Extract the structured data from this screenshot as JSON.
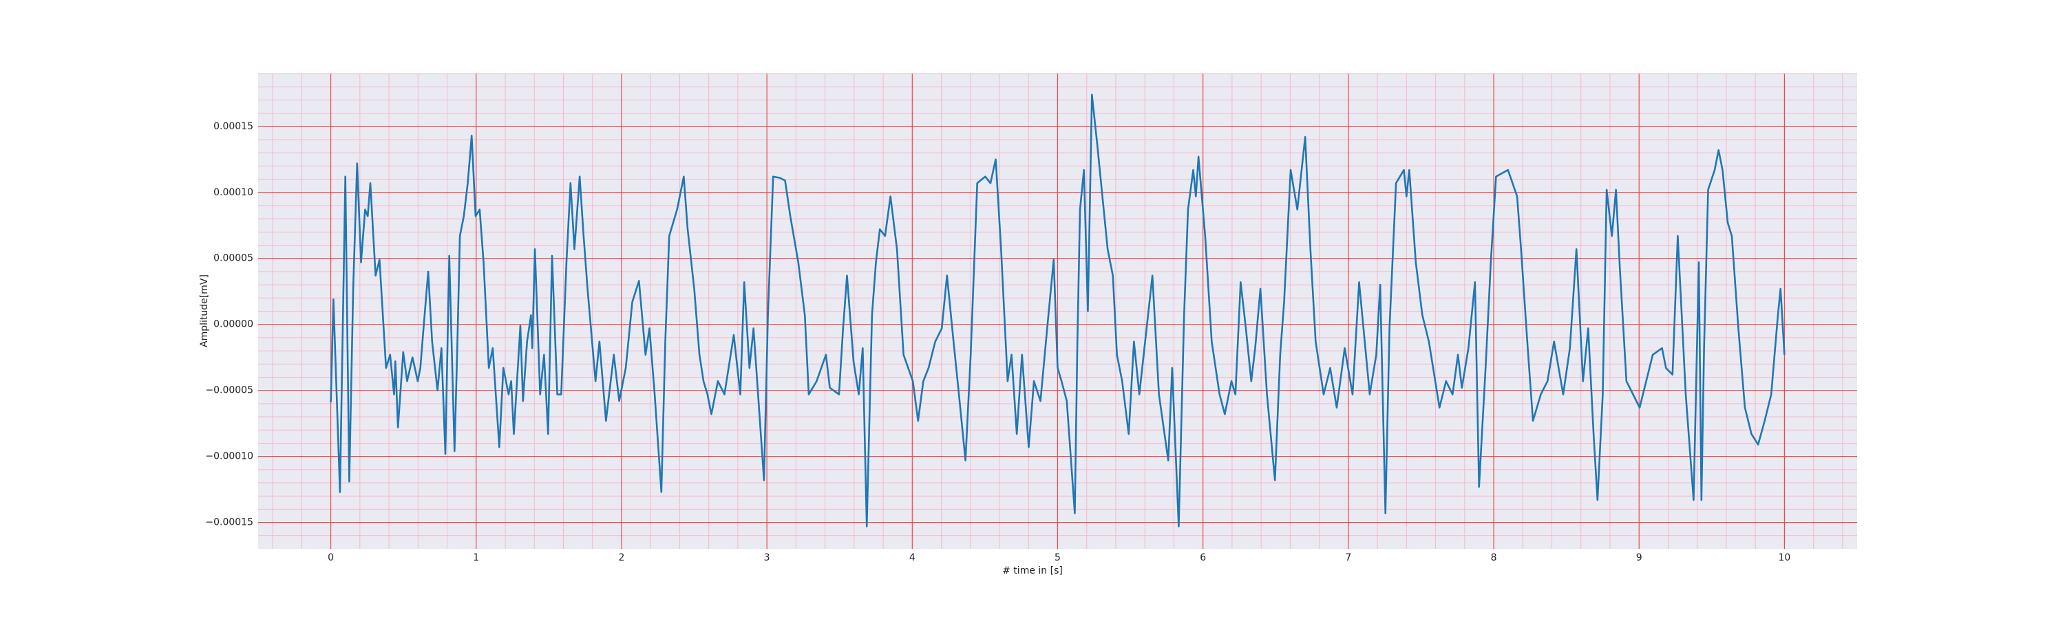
{
  "chart_data": {
    "type": "line",
    "xlabel": "# time in [s]",
    "ylabel": "Amplitude[mV]",
    "color": "#1f77b4",
    "grid": true,
    "minor_grid": true,
    "xlim": [
      -0.5,
      10.5
    ],
    "ylim": [
      -0.00017,
      0.00019
    ],
    "xticks": [
      0,
      1,
      2,
      3,
      4,
      5,
      6,
      7,
      8,
      9,
      10
    ],
    "yticks": [
      {
        "value": -0.00015,
        "label": "−0.00015"
      },
      {
        "value": -0.0001,
        "label": "−0.00010"
      },
      {
        "value": -5e-05,
        "label": "−0.00005"
      },
      {
        "value": 0,
        "label": "0.00000"
      },
      {
        "value": 5e-05,
        "label": "0.00005"
      },
      {
        "value": 0.0001,
        "label": "0.00010"
      },
      {
        "value": 0.00015,
        "label": "0.00015"
      }
    ],
    "xminorticks": [
      -0.4,
      -0.2,
      0.2,
      0.4,
      0.6,
      0.8,
      1.2,
      1.4,
      1.6,
      1.8,
      2.2,
      2.4,
      2.6,
      2.8,
      3.2,
      3.4,
      3.6,
      3.8,
      4.2,
      4.4,
      4.6,
      4.8,
      5.2,
      5.4,
      5.6,
      5.8,
      6.2,
      6.4,
      6.6,
      6.8,
      7.2,
      7.4,
      7.6,
      7.8,
      8.2,
      8.4,
      8.6,
      8.8,
      9.2,
      9.4,
      9.6,
      9.8,
      10.2,
      10.4
    ],
    "yminorticks": [
      -0.00016,
      -0.00014,
      -0.00013,
      -0.00012,
      -0.00011,
      -9e-05,
      -8e-05,
      -7e-05,
      -6e-05,
      -4e-05,
      -3e-05,
      -2e-05,
      -1e-05,
      1e-05,
      2e-05,
      3e-05,
      4e-05,
      6e-05,
      7e-05,
      8e-05,
      9e-05,
      0.00011,
      0.00012,
      0.00013,
      0.00014,
      0.00016,
      0.00017,
      0.00018,
      0.00019
    ],
    "x": [
      0,
      0.018,
      0.063,
      0.1,
      0.127,
      0.154,
      0.181,
      0.208,
      0.236,
      0.254,
      0.272,
      0.308,
      0.335,
      0.38,
      0.408,
      0.435,
      0.444,
      0.462,
      0.498,
      0.525,
      0.562,
      0.598,
      0.616,
      0.634,
      0.67,
      0.697,
      0.734,
      0.761,
      0.788,
      0.815,
      0.851,
      0.87,
      0.888,
      0.915,
      0.942,
      0.969,
      0.996,
      1.024,
      1.051,
      1.087,
      1.114,
      1.141,
      1.159,
      1.187,
      1.223,
      1.241,
      1.259,
      1.304,
      1.322,
      1.35,
      1.377,
      1.386,
      1.404,
      1.44,
      1.467,
      1.495,
      1.522,
      1.558,
      1.585,
      1.621,
      1.649,
      1.676,
      1.712,
      1.739,
      1.766,
      1.821,
      1.848,
      1.893,
      1.947,
      1.984,
      2.029,
      2.074,
      2.12,
      2.165,
      2.192,
      2.228,
      2.274,
      2.301,
      2.328,
      2.355,
      2.382,
      2.428,
      2.455,
      2.5,
      2.536,
      2.564,
      2.591,
      2.618,
      2.663,
      2.708,
      2.772,
      2.817,
      2.844,
      2.88,
      2.908,
      2.98,
      3.007,
      3.043,
      3.089,
      3.125,
      3.161,
      3.216,
      3.261,
      3.288,
      3.342,
      3.406,
      3.433,
      3.496,
      3.524,
      3.551,
      3.596,
      3.632,
      3.659,
      3.687,
      3.723,
      3.75,
      3.777,
      3.813,
      3.85,
      3.895,
      3.94,
      4.004,
      4.04,
      4.076,
      4.112,
      4.158,
      4.203,
      4.239,
      4.284,
      4.321,
      4.366,
      4.402,
      4.447,
      4.502,
      4.538,
      4.574,
      4.611,
      4.656,
      4.683,
      4.719,
      4.755,
      4.801,
      4.837,
      4.882,
      4.928,
      4.973,
      5.0,
      5.027,
      5.063,
      5.118,
      5.136,
      5.154,
      5.181,
      5.208,
      5.236,
      5.272,
      5.299,
      5.344,
      5.38,
      5.408,
      5.444,
      5.489,
      5.525,
      5.562,
      5.607,
      5.652,
      5.697,
      5.761,
      5.788,
      5.833,
      5.87,
      5.897,
      5.933,
      5.951,
      5.969,
      6.015,
      6.06,
      6.114,
      6.15,
      6.196,
      6.223,
      6.259,
      6.295,
      6.332,
      6.359,
      6.395,
      6.44,
      6.495,
      6.531,
      6.558,
      6.603,
      6.649,
      6.703,
      6.739,
      6.775,
      6.83,
      6.875,
      6.92,
      6.975,
      7.029,
      7.074,
      7.147,
      7.192,
      7.219,
      7.255,
      7.283,
      7.328,
      7.382,
      7.4,
      7.419,
      7.464,
      7.509,
      7.554,
      7.627,
      7.672,
      7.717,
      7.754,
      7.781,
      7.826,
      7.871,
      7.899,
      7.944,
      7.98,
      8.016,
      8.098,
      8.161,
      8.188,
      8.234,
      8.27,
      8.324,
      8.37,
      8.415,
      8.478,
      8.524,
      8.569,
      8.614,
      8.65,
      8.687,
      8.714,
      8.75,
      8.777,
      8.813,
      8.841,
      8.868,
      8.913,
      9.004,
      9.094,
      9.158,
      9.185,
      9.23,
      9.266,
      9.321,
      9.375,
      9.411,
      9.429,
      9.447,
      9.475,
      9.52,
      9.547,
      9.574,
      9.61,
      9.638,
      9.683,
      9.728,
      9.773,
      9.819,
      9.864,
      9.909,
      9.955,
      9.973,
      10.0
    ],
    "values": [
      -5.9e-05,
      1.9e-05,
      -0.000127,
      0.000112,
      -0.000119,
      2.7e-05,
      0.000122,
      4.7e-05,
      8.7e-05,
      8.2e-05,
      0.000107,
      3.7e-05,
      4.9e-05,
      -3.3e-05,
      -2.3e-05,
      -5.3e-05,
      -2.8e-05,
      -7.8e-05,
      -2.1e-05,
      -4.3e-05,
      -2.5e-05,
      -4.3e-05,
      -3.3e-05,
      -8e-06,
      4e-05,
      -1.3e-05,
      -5e-05,
      -1.8e-05,
      -9.8e-05,
      5.2e-05,
      -9.6e-05,
      -1.8e-05,
      6.7e-05,
      8.2e-05,
      0.000107,
      0.000143,
      8.2e-05,
      8.7e-05,
      4.7e-05,
      -3.3e-05,
      -1.8e-05,
      -6.3e-05,
      -9.3e-05,
      -3.3e-05,
      -5.3e-05,
      -4.3e-05,
      -8.3e-05,
      -1e-06,
      -5.8e-05,
      -1.3e-05,
      7e-06,
      -1.8e-05,
      5.7e-05,
      -5.3e-05,
      -2.3e-05,
      -8.3e-05,
      5.2e-05,
      -5.3e-05,
      -5.3e-05,
      4.7e-05,
      0.000107,
      5.7e-05,
      0.000112,
      6.7e-05,
      2.7e-05,
      -4.3e-05,
      -1.3e-05,
      -7.3e-05,
      -2.3e-05,
      -5.8e-05,
      -3.3e-05,
      1.7e-05,
      3.3e-05,
      -2.3e-05,
      -3e-06,
      -5.3e-05,
      -0.000127,
      -1.3e-05,
      6.7e-05,
      7.7e-05,
      8.7e-05,
      0.000112,
      7.2e-05,
      2.7e-05,
      -2.3e-05,
      -4.3e-05,
      -5.3e-05,
      -6.8e-05,
      -4.3e-05,
      -5.3e-05,
      -8e-06,
      -5.3e-05,
      3.2e-05,
      -3.3e-05,
      -3e-06,
      -0.000118,
      7e-06,
      0.000112,
      0.000111,
      0.000109,
      8.2e-05,
      4.7e-05,
      7e-06,
      -5.3e-05,
      -4.3e-05,
      -2.3e-05,
      -4.8e-05,
      -5.3e-05,
      -3e-06,
      3.7e-05,
      -2.8e-05,
      -5.3e-05,
      -1.8e-05,
      -0.000153,
      7e-06,
      4.7e-05,
      7.2e-05,
      6.7e-05,
      9.7e-05,
      5.7e-05,
      -2.3e-05,
      -4.3e-05,
      -7.3e-05,
      -4.3e-05,
      -3.3e-05,
      -1.3e-05,
      -3e-06,
      3.7e-05,
      -1.3e-05,
      -5.3e-05,
      -0.000103,
      -2.3e-05,
      0.000107,
      0.000112,
      0.000107,
      0.000125,
      5.7e-05,
      -4.3e-05,
      -2.3e-05,
      -8.3e-05,
      -2.3e-05,
      -9.3e-05,
      -4.3e-05,
      -5.8e-05,
      -3e-06,
      4.9e-05,
      -3.3e-05,
      -4.3e-05,
      -5.8e-05,
      -0.000143,
      -1.3e-05,
      8.7e-05,
      0.000117,
      1e-05,
      0.000174,
      0.000137,
      0.000107,
      5.7e-05,
      3.7e-05,
      -2.3e-05,
      -4.3e-05,
      -8.3e-05,
      -1.3e-05,
      -5.3e-05,
      -8e-06,
      3.7e-05,
      -5.3e-05,
      -0.000103,
      -3.3e-05,
      -0.000153,
      7e-06,
      8.7e-05,
      0.000117,
      9.7e-05,
      0.000127,
      6.7e-05,
      -1.3e-05,
      -5.3e-05,
      -6.8e-05,
      -4.3e-05,
      -5.3e-05,
      3.2e-05,
      -3e-06,
      -4.3e-05,
      -1.8e-05,
      2.7e-05,
      -5.3e-05,
      -0.000118,
      -2.3e-05,
      1.7e-05,
      0.000117,
      8.7e-05,
      0.000142,
      5.7e-05,
      -1.3e-05,
      -5.3e-05,
      -3.3e-05,
      -6.3e-05,
      -1.8e-05,
      -5.3e-05,
      3.2e-05,
      -5.3e-05,
      -2.3e-05,
      3e-05,
      -0.000143,
      -3e-06,
      0.000107,
      0.000117,
      9.7e-05,
      0.000117,
      4.7e-05,
      7e-06,
      -1.3e-05,
      -6.3e-05,
      -4.3e-05,
      -5.3e-05,
      -2.3e-05,
      -4.8e-05,
      -1.8e-05,
      3.2e-05,
      -0.000123,
      -3.3e-05,
      4.7e-05,
      0.000112,
      0.000117,
      9.7e-05,
      5.7e-05,
      -1.8e-05,
      -7.3e-05,
      -5.3e-05,
      -4.3e-05,
      -1.3e-05,
      -5.3e-05,
      -1.8e-05,
      5.7e-05,
      -4.3e-05,
      -3e-06,
      -8.3e-05,
      -0.000133,
      -5.3e-05,
      0.000102,
      6.7e-05,
      0.000102,
      4.2e-05,
      -4.3e-05,
      -6.3e-05,
      -2.3e-05,
      -1.8e-05,
      -3.3e-05,
      -3.8e-05,
      6.7e-05,
      -5.3e-05,
      -0.000133,
      4.7e-05,
      -0.000133,
      -1.8e-05,
      0.000102,
      0.000117,
      0.000132,
      0.000117,
      7.7e-05,
      6.7e-05,
      -3e-06,
      -6.3e-05,
      -8.3e-05,
      -9.1e-05,
      -7.3e-05,
      -5.3e-05,
      7e-06,
      2.7e-05,
      -2.3e-05
    ]
  }
}
